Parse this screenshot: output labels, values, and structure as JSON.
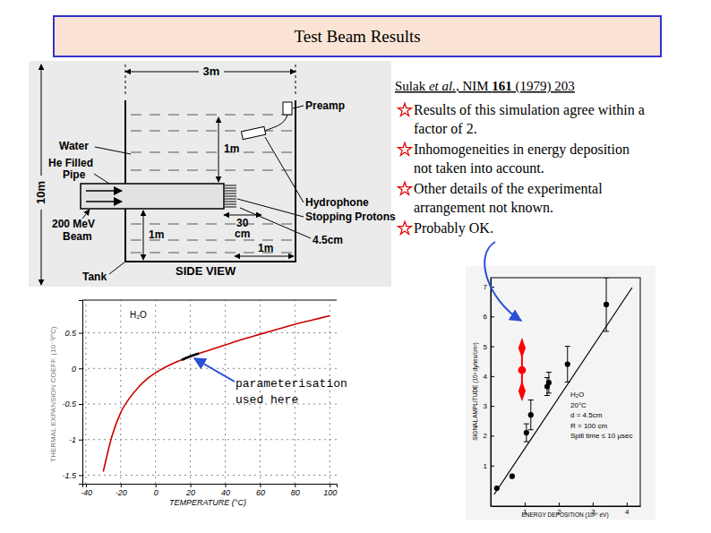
{
  "slide": {
    "title": "Test Beam Results",
    "reference": [
      "Sulak ",
      "et al.",
      ", NIM ",
      "161",
      " (1979) 203"
    ],
    "bullets": [
      [
        "Results of this simulation agree within a",
        "factor of 2."
      ],
      [
        "Inhomogeneities in energy deposition",
        "not taken into account."
      ],
      [
        "Other details of the experimental",
        "arrangement not known."
      ],
      [
        "Probably OK."
      ]
    ]
  },
  "diagram": {
    "width": "3m",
    "height": "10m",
    "water": "Water",
    "pipe": [
      "He Filled",
      "Pipe"
    ],
    "beam": [
      "200 MeV",
      "Beam"
    ],
    "tank": "Tank",
    "preamp": "Preamp",
    "hydrophone": "Hydrophone",
    "protons": "Stopping Protons",
    "depth": "1m",
    "bottom": "1m",
    "pipe_end": [
      "30",
      "cm"
    ],
    "side": "1m",
    "spread": "4.5cm",
    "view": "SIDE VIEW"
  },
  "chart_data": [
    {
      "type": "line",
      "title": "H₂O",
      "xlabel": "TEMPERATURE (°C)",
      "ylabel": "THERMAL EXPANSION COEFF. (10⁻³/°C)",
      "x": [
        -30,
        -25,
        -20,
        -15,
        -10,
        -5,
        0,
        5,
        10,
        15,
        20,
        25,
        30,
        35,
        40,
        50,
        60,
        70,
        80,
        90,
        100
      ],
      "series": [
        {
          "color": "#cc0000",
          "values": [
            -1.45,
            -0.95,
            -0.62,
            -0.42,
            -0.27,
            -0.15,
            -0.06,
            0.01,
            0.07,
            0.12,
            0.17,
            0.21,
            0.25,
            0.29,
            0.33,
            0.41,
            0.48,
            0.55,
            0.62,
            0.68,
            0.74
          ]
        },
        {
          "color": "#000000",
          "values": [
            null,
            null,
            null,
            null,
            null,
            null,
            null,
            null,
            null,
            0.12,
            0.17,
            0.21,
            null,
            null,
            null,
            null,
            null,
            null,
            null,
            null,
            null
          ]
        }
      ],
      "xlim": [
        -42,
        104
      ],
      "ylim": [
        -1.62,
        0.96
      ],
      "xticks": [
        -40,
        -20,
        0,
        20,
        40,
        60,
        80,
        100
      ],
      "yticks": [
        -1.5,
        -1,
        -0.5,
        0,
        0.5
      ],
      "grid": true,
      "annotation": [
        "parameterisation",
        "used here"
      ]
    },
    {
      "type": "scatter",
      "xlabel": "ENERGY DEPOSITION (10²⁰ eV)",
      "ylabel": "SIGNAL AMPLITUDE (10³ dynes/cm²)",
      "series": [
        {
          "type": "scatter",
          "color": "#000000",
          "marker": "circle",
          "x": [
            0.18,
            0.63,
            1.05,
            1.18,
            1.66,
            1.71,
            2.26,
            3.4
          ],
          "values": [
            0.24,
            0.64,
            2.1,
            2.7,
            3.65,
            3.78,
            4.4,
            6.4
          ],
          "errors": [
            null,
            null,
            0.3,
            0.5,
            0.3,
            0.35,
            0.6,
            0.9
          ]
        },
        {
          "type": "line",
          "color": "#000000",
          "x": [
            0.1,
            4.16
          ],
          "values": [
            0.03,
            6.97
          ]
        },
        {
          "type": "scatter",
          "color": "#ff0000",
          "marker": "circle",
          "x": [
            0.92
          ],
          "values": [
            4.2
          ],
          "low": [
            3.5
          ],
          "high": [
            4.94
          ]
        }
      ],
      "xlim": [
        0,
        4.4
      ],
      "ylim": [
        -0.36,
        7.3
      ],
      "xticks": [
        1,
        2,
        3,
        4
      ],
      "yticks": [
        1,
        2,
        3,
        4,
        5,
        6,
        7
      ],
      "annotations": [
        "H₂O",
        "20°C",
        "d = 4.5cm",
        "R = 100 cm",
        "Spill time ≤ 10 μsec"
      ]
    }
  ]
}
